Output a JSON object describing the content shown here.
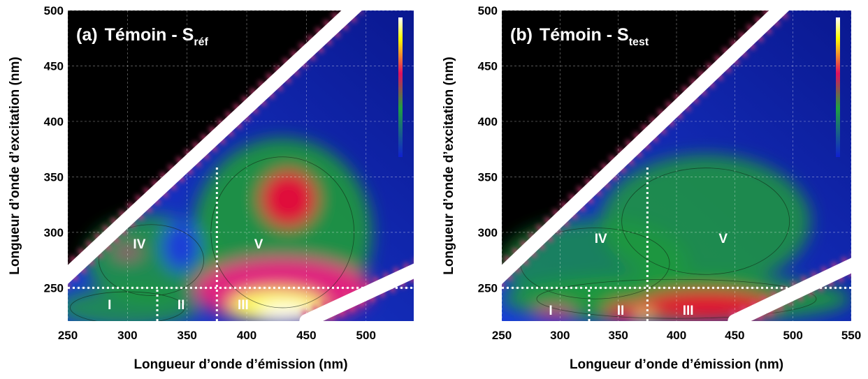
{
  "chart_data": [
    {
      "type": "contour",
      "label": "(a)",
      "title": "Témoin - S",
      "subscript": "réf",
      "xlabel": "Longueur d’onde d’émission (nm)",
      "ylabel": "Longueur d’onde d’excitation (nm)",
      "xlim": [
        250,
        540
      ],
      "ylim": [
        220,
        500
      ],
      "xticks": [
        250,
        300,
        350,
        400,
        450,
        500
      ],
      "yticks": [
        250,
        300,
        350,
        400,
        450,
        500
      ],
      "grid": true,
      "regions": [
        "I",
        "II",
        "III",
        "IV",
        "V"
      ],
      "boundaries": {
        "x": [
          325,
          375
        ],
        "y": 250
      }
    },
    {
      "type": "contour",
      "label": "(b)",
      "title": "Témoin - S",
      "subscript": "test",
      "xlabel": "Longueur d’onde d’émission (nm)",
      "ylabel": "Longueur d’onde d’excitation (nm)",
      "xlim": [
        250,
        550
      ],
      "ylim": [
        220,
        500
      ],
      "xticks": [
        250,
        300,
        350,
        400,
        450,
        500,
        550
      ],
      "yticks": [
        250,
        300,
        350,
        400,
        450,
        500
      ],
      "grid": true,
      "regions": [
        "I",
        "II",
        "III",
        "IV",
        "V"
      ],
      "boundaries": {
        "x": [
          325,
          375
        ],
        "y": 250
      }
    }
  ]
}
